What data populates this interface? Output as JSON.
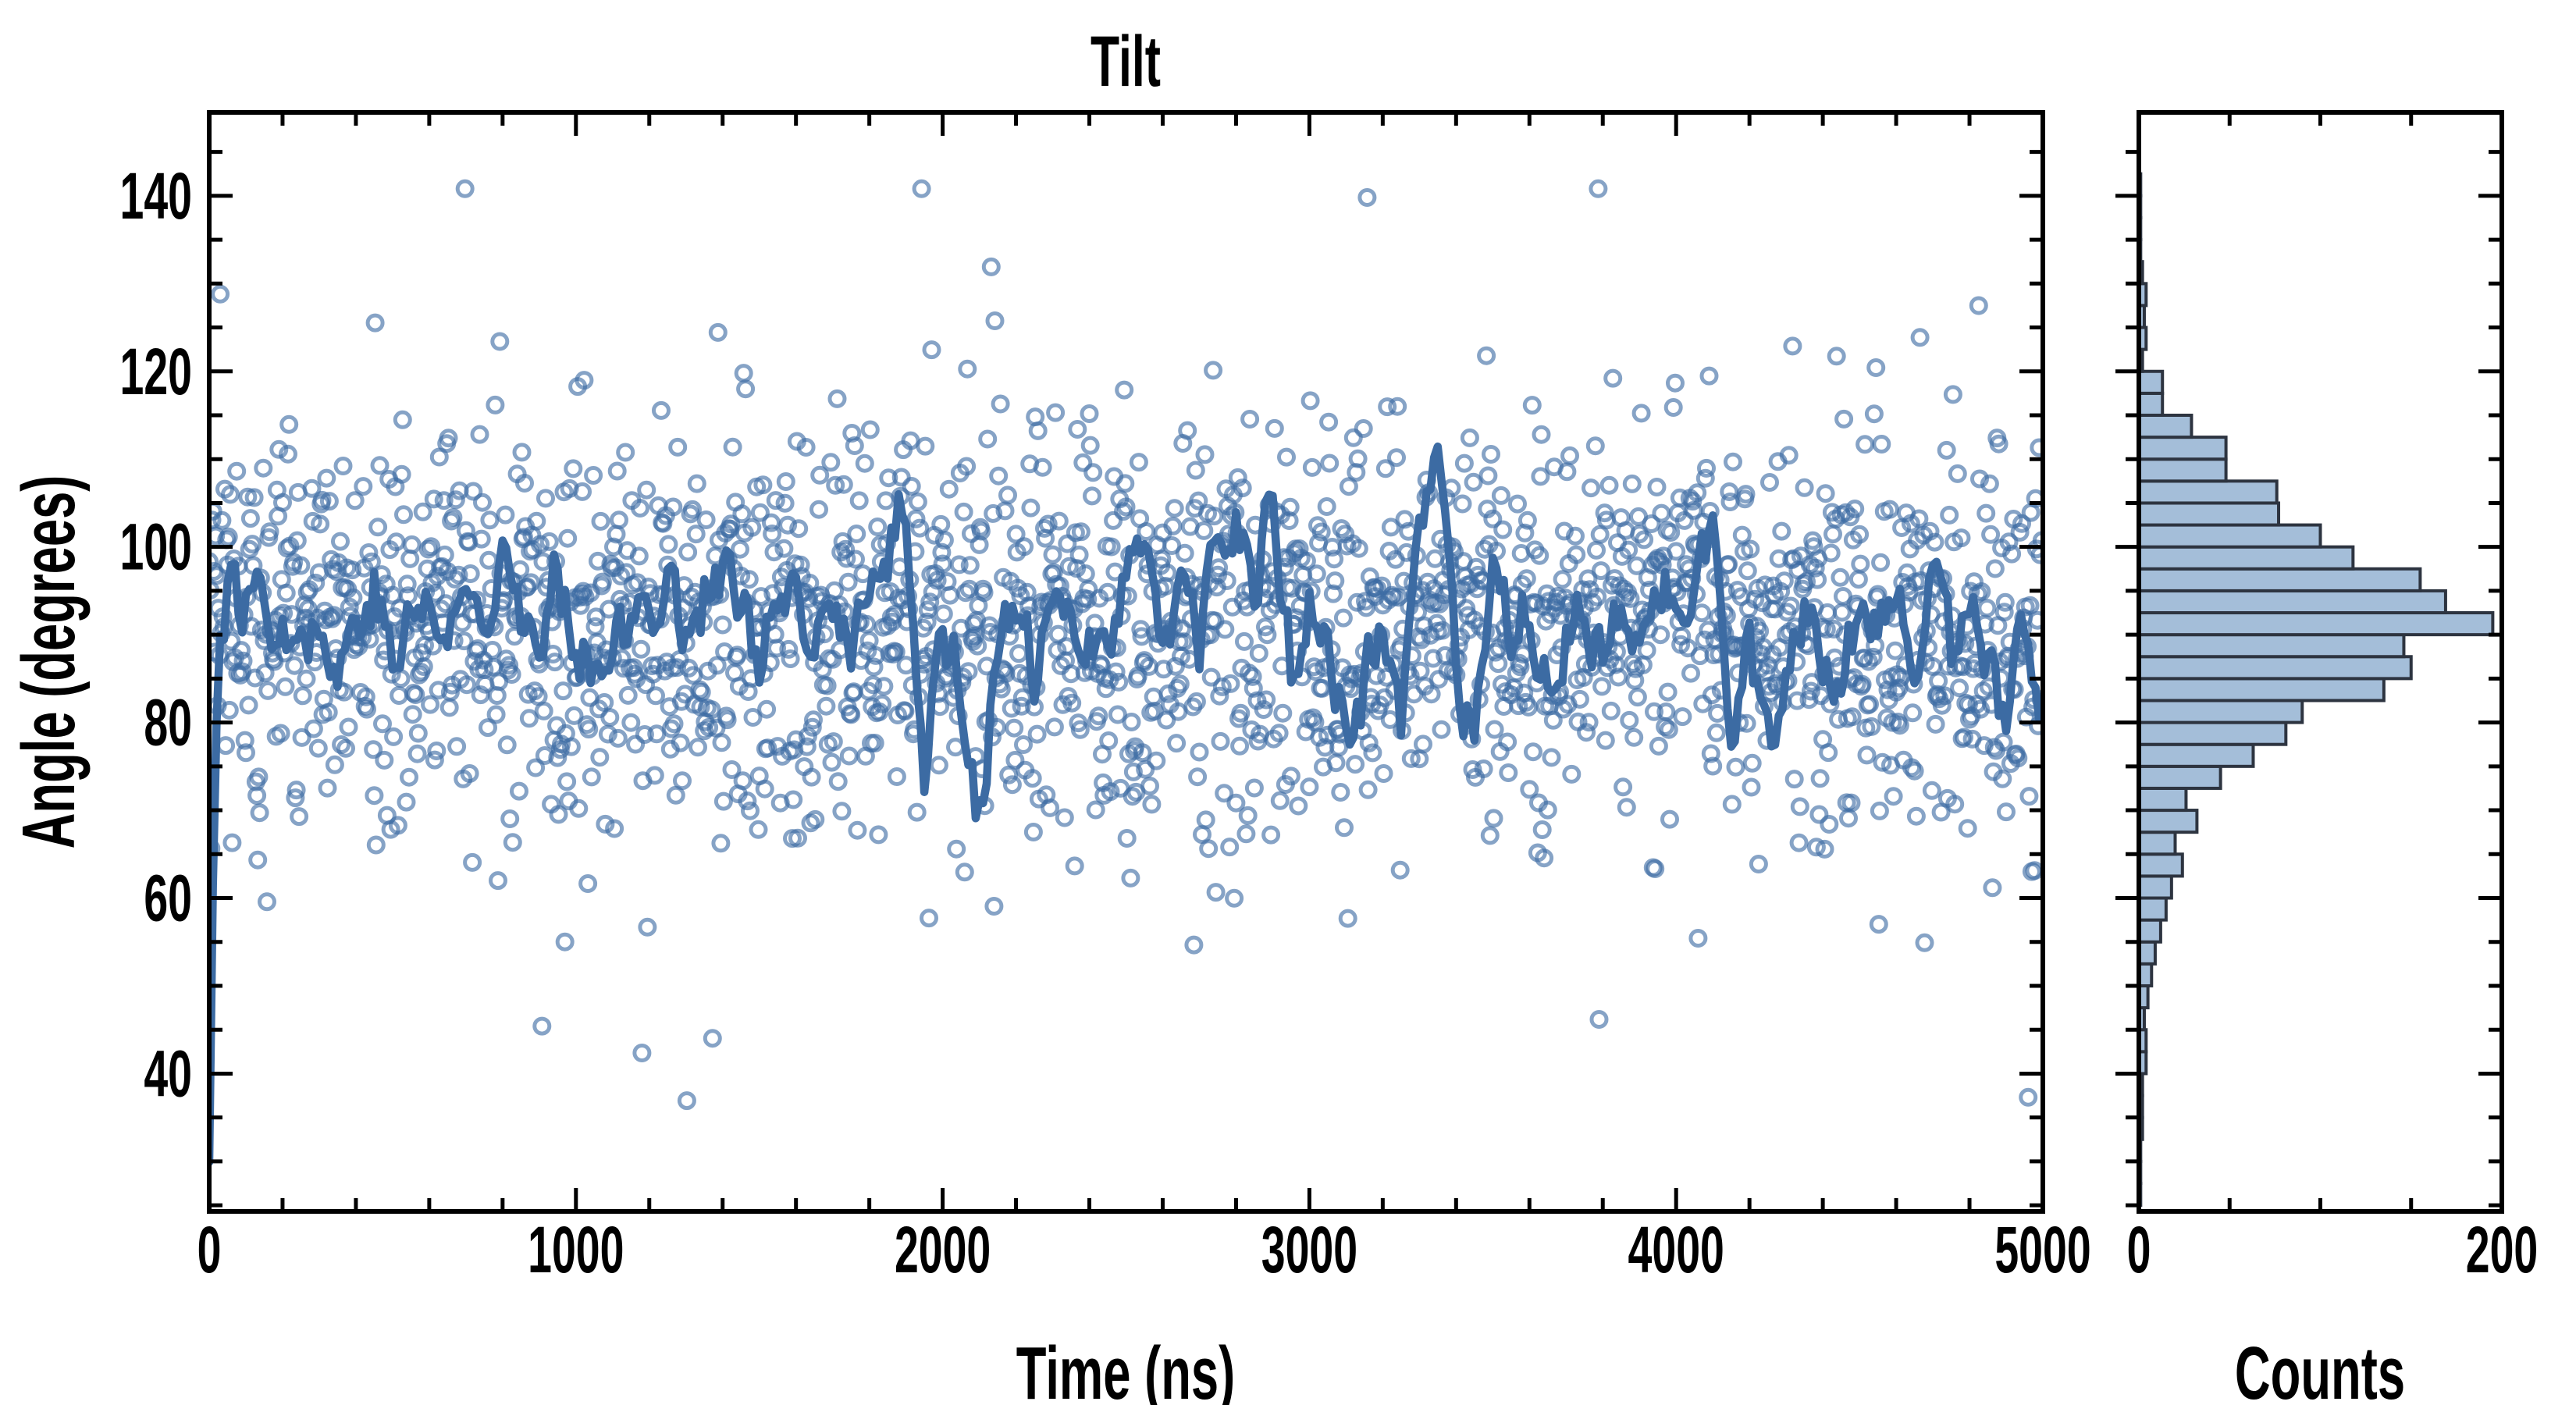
{
  "colors": {
    "background": "#ffffff",
    "axes": "#000000",
    "text": "#000000",
    "mean_line": "#3c6ba3",
    "scatter_stroke": "#3c6ba3",
    "scatter_opacity": 0.62,
    "hist_fill": "#a4bed9",
    "hist_edge": "#2d3440"
  },
  "chart_data": [
    {
      "type": "scatter",
      "title": "Tilt",
      "xlabel": "Time (ns)",
      "ylabel": "Angle (degrees)",
      "xlim": [
        0,
        5000
      ],
      "ylim": [
        24.3,
        149.5
      ],
      "xticks": [
        0,
        1000,
        2000,
        3000,
        4000,
        5000
      ],
      "xtick_labels": [
        "0",
        "1000",
        "2000",
        "3000",
        "4000",
        "5000"
      ],
      "x_minor_step": 200,
      "yticks": [
        40,
        60,
        80,
        100,
        120,
        140
      ],
      "ytick_labels": [
        "40",
        "60",
        "80",
        "100",
        "120",
        "140"
      ],
      "y_minor_step": 5,
      "grid": false,
      "legend": "none",
      "tick_direction": "in",
      "scatter": {
        "n_points": 2000,
        "t_start": 0,
        "t_step": 2.5,
        "mean": 91.7,
        "sd": 10.3,
        "tail_fraction": 0.09,
        "tail_mean": 90,
        "tail_sd": 21,
        "clip": [
          26.2,
          140.8
        ],
        "marker": "open-circle",
        "marker_radius_px": 9.5,
        "marker_stroke_px": 5,
        "seed": 20241107
      },
      "line": {
        "description": "running mean of tilt angle",
        "sample_step_ns": 10,
        "jitter_amplitude": 3.8,
        "jitter_persistence": 0.5,
        "stroke_width_px": 10.5,
        "seed": 77,
        "anchors": [
          [
            0,
            30
          ],
          [
            10,
            62
          ],
          [
            20,
            80
          ],
          [
            30,
            90
          ],
          [
            50,
            95
          ],
          [
            100,
            93
          ],
          [
            150,
            97
          ],
          [
            200,
            89
          ],
          [
            250,
            95
          ],
          [
            300,
            90
          ],
          [
            350,
            86
          ],
          [
            400,
            92
          ],
          [
            450,
            96
          ],
          [
            500,
            86
          ],
          [
            550,
            92
          ],
          [
            600,
            94
          ],
          [
            650,
            88
          ],
          [
            700,
            96
          ],
          [
            750,
            91
          ],
          [
            800,
            104
          ],
          [
            850,
            94
          ],
          [
            900,
            86
          ],
          [
            950,
            97
          ],
          [
            1000,
            91
          ],
          [
            1050,
            87
          ],
          [
            1100,
            92
          ],
          [
            1150,
            89
          ],
          [
            1200,
            94
          ],
          [
            1250,
            97
          ],
          [
            1300,
            90
          ],
          [
            1350,
            95
          ],
          [
            1400,
            97
          ],
          [
            1450,
            92
          ],
          [
            1500,
            88
          ],
          [
            1550,
            93
          ],
          [
            1600,
            91
          ],
          [
            1650,
            87
          ],
          [
            1700,
            93
          ],
          [
            1750,
            90
          ],
          [
            1800,
            94
          ],
          [
            1850,
            98
          ],
          [
            1900,
            106
          ],
          [
            1950,
            74
          ],
          [
            2000,
            92
          ],
          [
            2050,
            85
          ],
          [
            2100,
            70
          ],
          [
            2150,
            88
          ],
          [
            2200,
            91
          ],
          [
            2250,
            85
          ],
          [
            2300,
            92
          ],
          [
            2350,
            89
          ],
          [
            2400,
            93
          ],
          [
            2450,
            87
          ],
          [
            2500,
            96
          ],
          [
            2550,
            104
          ],
          [
            2600,
            90
          ],
          [
            2650,
            94
          ],
          [
            2700,
            88
          ],
          [
            2750,
            99
          ],
          [
            2800,
            103
          ],
          [
            2850,
            96
          ],
          [
            2900,
            105
          ],
          [
            2950,
            86
          ],
          [
            3000,
            93
          ],
          [
            3050,
            88
          ],
          [
            3100,
            78
          ],
          [
            3150,
            84
          ],
          [
            3200,
            91
          ],
          [
            3250,
            81
          ],
          [
            3300,
            100
          ],
          [
            3350,
            107
          ],
          [
            3400,
            86
          ],
          [
            3450,
            76
          ],
          [
            3500,
            94
          ],
          [
            3550,
            89
          ],
          [
            3600,
            93
          ],
          [
            3650,
            87
          ],
          [
            3700,
            91
          ],
          [
            3750,
            95
          ],
          [
            3800,
            85
          ],
          [
            3850,
            92
          ],
          [
            3900,
            88
          ],
          [
            3950,
            96
          ],
          [
            4000,
            93
          ],
          [
            4050,
            99
          ],
          [
            4100,
            103
          ],
          [
            4150,
            76
          ],
          [
            4200,
            88
          ],
          [
            4250,
            75
          ],
          [
            4300,
            82
          ],
          [
            4350,
            95
          ],
          [
            4400,
            90
          ],
          [
            4450,
            86
          ],
          [
            4500,
            94
          ],
          [
            4550,
            89
          ],
          [
            4600,
            92
          ],
          [
            4650,
            85
          ],
          [
            4700,
            95
          ],
          [
            4750,
            88
          ],
          [
            4800,
            93
          ],
          [
            4850,
            86
          ],
          [
            4900,
            79
          ],
          [
            4950,
            91
          ],
          [
            5000,
            84
          ]
        ]
      }
    },
    {
      "type": "bar",
      "orientation": "horizontal",
      "xlabel": "Counts",
      "xlim": [
        0,
        200
      ],
      "xticks": [
        0,
        200
      ],
      "xtick_labels": [
        "0",
        "200"
      ],
      "x_minor_step": 50,
      "shares_y_with": "main",
      "bin_start": 25,
      "bin_width": 2.5,
      "counts": [
        1,
        1,
        1,
        2,
        2,
        2,
        4,
        4,
        3,
        5,
        7,
        9,
        12,
        15,
        18,
        24,
        20,
        32,
        26,
        45,
        63,
        81,
        90,
        135,
        150,
        146,
        195,
        169,
        155,
        118,
        100,
        77,
        76,
        48,
        48,
        29,
        13,
        13,
        2,
        4,
        3,
        4,
        2,
        1,
        1,
        1,
        1,
        0,
        0,
        0
      ]
    }
  ]
}
